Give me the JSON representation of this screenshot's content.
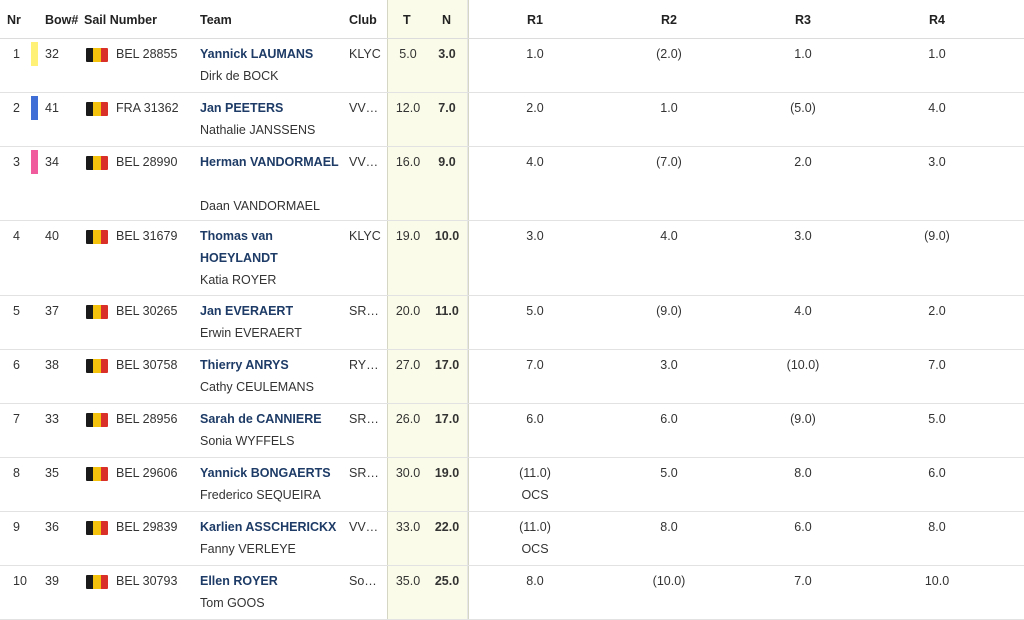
{
  "columns": {
    "nr": "Nr",
    "bow": "Bow#",
    "sail": "Sail Number",
    "team": "Team",
    "club": "Club",
    "t": "T",
    "n": "N",
    "r1": "R1",
    "r2": "R2",
    "r3": "R3",
    "r4": "R4"
  },
  "colors": {
    "helm_text": "#1d3b66",
    "total_column_bg": "#fbfbe9",
    "flag_black": "#1a1a1a",
    "flag_yellow": "#f4c20d",
    "flag_red": "#d9302a"
  },
  "rows": [
    {
      "nr": "1",
      "color": "#fff176",
      "bow": "32",
      "sail": "BEL 28855",
      "helm": "Yannick LAUMANS",
      "crew": "Dirk de BOCK",
      "club": "KLYC",
      "t": "5.0",
      "n": "3.0",
      "r1": "1.0",
      "r2": "(2.0)",
      "r3": "1.0",
      "r4": "1.0"
    },
    {
      "nr": "2",
      "color": "#3f6fd6",
      "bow": "41",
      "sail": "FRA 31362",
      "helm": "Jan PEETERS",
      "crew": "Nathalie JANSSENS",
      "club": "VV…",
      "t": "12.0",
      "n": "7.0",
      "r1": "2.0",
      "r2": "1.0",
      "r3": "(5.0)",
      "r4": "4.0"
    },
    {
      "nr": "3",
      "color": "#ef5b9c",
      "bow": "34",
      "sail": "BEL 28990",
      "helm": "Herman VANDORMAEL",
      "crew": "Daan VANDORMAEL",
      "club": "VV…",
      "t": "16.0",
      "n": "9.0",
      "r1": "4.0",
      "r2": "(7.0)",
      "r3": "2.0",
      "r4": "3.0"
    },
    {
      "nr": "4",
      "color": "",
      "bow": "40",
      "sail": "BEL 31679",
      "helm": "Thomas van HOEYLANDT",
      "crew": "Katia ROYER",
      "club": "KLYC",
      "t": "19.0",
      "n": "10.0",
      "r1": "3.0",
      "r2": "4.0",
      "r3": "3.0",
      "r4": "(9.0)"
    },
    {
      "nr": "5",
      "color": "",
      "bow": "37",
      "sail": "BEL 30265",
      "helm": "Jan EVERAERT",
      "crew": "Erwin EVERAERT",
      "club": "SR…",
      "t": "20.0",
      "n": "11.0",
      "r1": "5.0",
      "r2": "(9.0)",
      "r3": "4.0",
      "r4": "2.0"
    },
    {
      "nr": "6",
      "color": "",
      "bow": "38",
      "sail": "BEL 30758",
      "helm": "Thierry ANRYS",
      "crew": "Cathy CEULEMANS",
      "club": "RY…",
      "t": "27.0",
      "n": "17.0",
      "r1": "7.0",
      "r2": "3.0",
      "r3": "(10.0)",
      "r4": "7.0"
    },
    {
      "nr": "7",
      "color": "",
      "bow": "33",
      "sail": "BEL 28956",
      "helm": "Sarah de CANNIERE",
      "crew": "Sonia WYFFELS",
      "club": "SR…",
      "t": "26.0",
      "n": "17.0",
      "r1": "6.0",
      "r2": "6.0",
      "r3": "(9.0)",
      "r4": "5.0"
    },
    {
      "nr": "8",
      "color": "",
      "bow": "35",
      "sail": "BEL 29606",
      "helm": "Yannick BONGAERTS",
      "crew": "Frederico SEQUEIRA",
      "club": "SR…",
      "t": "30.0",
      "n": "19.0",
      "r1": "(11.0)",
      "r1_code": "OCS",
      "r2": "5.0",
      "r3": "8.0",
      "r4": "6.0"
    },
    {
      "nr": "9",
      "color": "",
      "bow": "36",
      "sail": "BEL 29839",
      "helm": "Karlien ASSCHERICKX",
      "crew": "Fanny VERLEYE",
      "club": "VV…",
      "t": "33.0",
      "n": "22.0",
      "r1": "(11.0)",
      "r1_code": "OCS",
      "r2": "8.0",
      "r3": "6.0",
      "r4": "8.0"
    },
    {
      "nr": "10",
      "color": "",
      "bow": "39",
      "sail": "BEL 30793",
      "helm": "Ellen ROYER",
      "crew": "Tom GOOS",
      "club": "So…",
      "t": "35.0",
      "n": "25.0",
      "r1": "8.0",
      "r2": "(10.0)",
      "r3": "7.0",
      "r4": "10.0"
    }
  ]
}
